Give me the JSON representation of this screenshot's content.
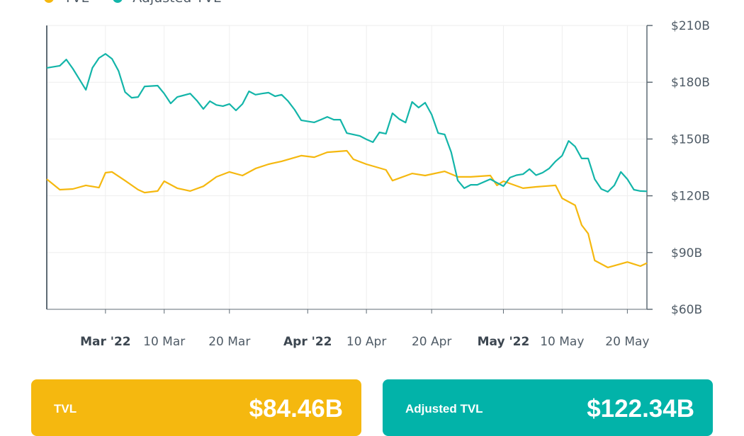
{
  "chart_data": {
    "type": "line",
    "legend_position": "top-left",
    "grid": true,
    "y_axis_side": "right",
    "xlim": [
      "2022-02-20",
      "2022-05-23"
    ],
    "ylim": [
      60,
      210
    ],
    "y_ticks": [
      60,
      90,
      120,
      150,
      180,
      210
    ],
    "y_tick_labels": [
      "$60B",
      "$90B",
      "$120B",
      "$150B",
      "$180B",
      "$210B"
    ],
    "x_ticks": [
      {
        "date": "2022-03-01",
        "label": "Mar '22",
        "bold": true
      },
      {
        "date": "2022-03-10",
        "label": "10 Mar",
        "bold": false
      },
      {
        "date": "2022-03-20",
        "label": "20 Mar",
        "bold": false
      },
      {
        "date": "2022-04-01",
        "label": "Apr '22",
        "bold": true
      },
      {
        "date": "2022-04-10",
        "label": "10 Apr",
        "bold": false
      },
      {
        "date": "2022-04-20",
        "label": "20 Apr",
        "bold": false
      },
      {
        "date": "2022-05-01",
        "label": "May '22",
        "bold": true
      },
      {
        "date": "2022-05-10",
        "label": "10 May",
        "bold": false
      },
      {
        "date": "2022-05-20",
        "label": "20 May",
        "bold": false
      }
    ],
    "series": [
      {
        "name": "TVL",
        "color": "#F5B80F",
        "unit": "$B",
        "points": [
          [
            "2022-02-20",
            128.8
          ],
          [
            "2022-02-22",
            123.2
          ],
          [
            "2022-02-24",
            123.6
          ],
          [
            "2022-02-26",
            125.5
          ],
          [
            "2022-02-28",
            124.3
          ],
          [
            "2022-03-01",
            132.2
          ],
          [
            "2022-03-02",
            132.6
          ],
          [
            "2022-03-04",
            128.0
          ],
          [
            "2022-03-06",
            123.2
          ],
          [
            "2022-03-07",
            121.7
          ],
          [
            "2022-03-09",
            122.5
          ],
          [
            "2022-03-10",
            127.7
          ],
          [
            "2022-03-12",
            124.0
          ],
          [
            "2022-03-14",
            122.5
          ],
          [
            "2022-03-16",
            125.0
          ],
          [
            "2022-03-18",
            130.0
          ],
          [
            "2022-03-20",
            132.6
          ],
          [
            "2022-03-22",
            130.7
          ],
          [
            "2022-03-24",
            134.4
          ],
          [
            "2022-03-26",
            136.7
          ],
          [
            "2022-03-28",
            138.2
          ],
          [
            "2022-03-31",
            141.2
          ],
          [
            "2022-04-02",
            140.4
          ],
          [
            "2022-04-04",
            143.0
          ],
          [
            "2022-04-07",
            143.8
          ],
          [
            "2022-04-08",
            139.3
          ],
          [
            "2022-04-10",
            136.7
          ],
          [
            "2022-04-13",
            133.7
          ],
          [
            "2022-04-14",
            128.0
          ],
          [
            "2022-04-17",
            131.8
          ],
          [
            "2022-04-19",
            130.7
          ],
          [
            "2022-04-22",
            132.9
          ],
          [
            "2022-04-24",
            130.0
          ],
          [
            "2022-04-26",
            130.0
          ],
          [
            "2022-04-29",
            130.7
          ],
          [
            "2022-04-30",
            125.5
          ],
          [
            "2022-05-01",
            127.7
          ],
          [
            "2022-05-04",
            124.0
          ],
          [
            "2022-05-06",
            124.7
          ],
          [
            "2022-05-09",
            125.5
          ],
          [
            "2022-05-10",
            118.7
          ],
          [
            "2022-05-12",
            115.0
          ],
          [
            "2022-05-13",
            104.5
          ],
          [
            "2022-05-14",
            100.0
          ],
          [
            "2022-05-15",
            85.8
          ],
          [
            "2022-05-17",
            82.1
          ],
          [
            "2022-05-20",
            85.0
          ],
          [
            "2022-05-22",
            82.8
          ],
          [
            "2022-05-23",
            84.46
          ]
        ]
      },
      {
        "name": "Adjusted TVL",
        "color": "#13B5A9",
        "unit": "$B",
        "points": [
          [
            "2022-02-20",
            187.6
          ],
          [
            "2022-02-22",
            188.7
          ],
          [
            "2022-02-23",
            192.0
          ],
          [
            "2022-02-24",
            187.2
          ],
          [
            "2022-02-25",
            181.6
          ],
          [
            "2022-02-26",
            176.0
          ],
          [
            "2022-02-27",
            187.6
          ],
          [
            "2022-02-28",
            192.8
          ],
          [
            "2022-03-01",
            195.0
          ],
          [
            "2022-03-02",
            192.4
          ],
          [
            "2022-03-03",
            186.0
          ],
          [
            "2022-03-04",
            174.8
          ],
          [
            "2022-03-05",
            171.8
          ],
          [
            "2022-03-06",
            172.2
          ],
          [
            "2022-03-07",
            177.8
          ],
          [
            "2022-03-09",
            178.2
          ],
          [
            "2022-03-10",
            174.0
          ],
          [
            "2022-03-11",
            168.8
          ],
          [
            "2022-03-12",
            172.2
          ],
          [
            "2022-03-14",
            174.0
          ],
          [
            "2022-03-15",
            170.3
          ],
          [
            "2022-03-16",
            165.9
          ],
          [
            "2022-03-17",
            170.0
          ],
          [
            "2022-03-18",
            168.0
          ],
          [
            "2022-03-19",
            167.4
          ],
          [
            "2022-03-20",
            168.5
          ],
          [
            "2022-03-21",
            165.1
          ],
          [
            "2022-03-22",
            168.5
          ],
          [
            "2022-03-23",
            175.2
          ],
          [
            "2022-03-24",
            173.4
          ],
          [
            "2022-03-25",
            174.0
          ],
          [
            "2022-03-26",
            174.5
          ],
          [
            "2022-03-27",
            172.6
          ],
          [
            "2022-03-28",
            173.4
          ],
          [
            "2022-03-29",
            170.0
          ],
          [
            "2022-03-30",
            165.5
          ],
          [
            "2022-03-31",
            159.9
          ],
          [
            "2022-04-02",
            158.8
          ],
          [
            "2022-04-03",
            160.2
          ],
          [
            "2022-04-04",
            161.7
          ],
          [
            "2022-04-05",
            160.2
          ],
          [
            "2022-04-06",
            160.2
          ],
          [
            "2022-04-07",
            153.1
          ],
          [
            "2022-04-09",
            151.6
          ],
          [
            "2022-04-10",
            149.8
          ],
          [
            "2022-04-11",
            148.3
          ],
          [
            "2022-04-12",
            153.5
          ],
          [
            "2022-04-13",
            152.8
          ],
          [
            "2022-04-14",
            163.6
          ],
          [
            "2022-04-15",
            160.6
          ],
          [
            "2022-04-16",
            158.7
          ],
          [
            "2022-04-17",
            169.6
          ],
          [
            "2022-04-18",
            166.6
          ],
          [
            "2022-04-19",
            169.2
          ],
          [
            "2022-04-20",
            162.9
          ],
          [
            "2022-04-21",
            153.1
          ],
          [
            "2022-04-22",
            152.4
          ],
          [
            "2022-04-23",
            143.0
          ],
          [
            "2022-04-24",
            128.1
          ],
          [
            "2022-04-25",
            124.0
          ],
          [
            "2022-04-26",
            125.8
          ],
          [
            "2022-04-27",
            125.8
          ],
          [
            "2022-04-29",
            128.8
          ],
          [
            "2022-04-30",
            126.9
          ],
          [
            "2022-05-01",
            125.1
          ],
          [
            "2022-05-02",
            129.6
          ],
          [
            "2022-05-03",
            130.9
          ],
          [
            "2022-05-04",
            131.4
          ],
          [
            "2022-05-05",
            134.1
          ],
          [
            "2022-05-06",
            130.9
          ],
          [
            "2022-05-07",
            132.2
          ],
          [
            "2022-05-08",
            134.4
          ],
          [
            "2022-05-09",
            138.2
          ],
          [
            "2022-05-10",
            141.2
          ],
          [
            "2022-05-11",
            149.0
          ],
          [
            "2022-05-12",
            146.0
          ],
          [
            "2022-05-13",
            139.7
          ],
          [
            "2022-05-14",
            139.7
          ],
          [
            "2022-05-15",
            128.8
          ],
          [
            "2022-05-16",
            123.6
          ],
          [
            "2022-05-17",
            122.1
          ],
          [
            "2022-05-18",
            125.5
          ],
          [
            "2022-05-19",
            132.6
          ],
          [
            "2022-05-20",
            128.8
          ],
          [
            "2022-05-21",
            123.2
          ],
          [
            "2022-05-22",
            122.5
          ],
          [
            "2022-05-23",
            122.34
          ]
        ]
      }
    ]
  },
  "legend": {
    "items": [
      "TVL",
      "Adjusted TVL"
    ]
  },
  "cards": [
    {
      "label": "TVL",
      "value": "$84.46B",
      "color": "#F5B80F"
    },
    {
      "label": "Adjusted TVL",
      "value": "$122.34B",
      "color": "#02B3A9"
    }
  ]
}
